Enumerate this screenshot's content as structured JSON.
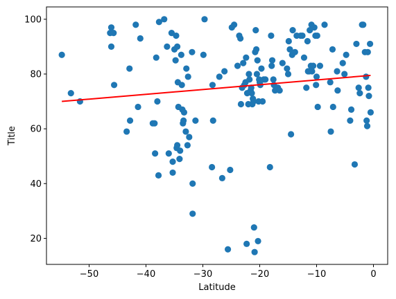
{
  "chart_data": {
    "type": "scatter",
    "title": "",
    "xlabel": "Latitude",
    "ylabel": "Title",
    "xlim": [
      -57.5,
      2.5
    ],
    "ylim": [
      10.5,
      104.5
    ],
    "xticks": [
      -50,
      -40,
      -30,
      -20,
      -10,
      0
    ],
    "yticks": [
      20,
      40,
      60,
      80,
      100
    ],
    "xtick_labels": [
      "−50",
      "−40",
      "−30",
      "−20",
      "−10",
      "0"
    ],
    "ytick_labels": [
      "20",
      "40",
      "60",
      "80",
      "100"
    ],
    "grid": false,
    "legend": "none",
    "colors": {
      "points": "#1f77b4",
      "regression": "#ff0000"
    },
    "series": [
      {
        "kind": "scatter",
        "points": [
          [
            -54.8,
            87
          ],
          [
            -53.2,
            73
          ],
          [
            -51.6,
            70
          ],
          [
            -46.3,
            95
          ],
          [
            -46.1,
            97
          ],
          [
            -46.1,
            90
          ],
          [
            -45.7,
            95
          ],
          [
            -45.6,
            76
          ],
          [
            -43.4,
            59
          ],
          [
            -42.9,
            82
          ],
          [
            -42.8,
            63
          ],
          [
            -41.8,
            98
          ],
          [
            -41.4,
            68
          ],
          [
            -41.0,
            93
          ],
          [
            -38.8,
            62
          ],
          [
            -38.5,
            62
          ],
          [
            -38.4,
            51
          ],
          [
            -38.2,
            86
          ],
          [
            -38.0,
            70
          ],
          [
            -37.8,
            43
          ],
          [
            -37.7,
            99
          ],
          [
            -36.8,
            100
          ],
          [
            -36.3,
            90
          ],
          [
            -36.0,
            51
          ],
          [
            -35.5,
            95
          ],
          [
            -35.3,
            48
          ],
          [
            -35.3,
            44
          ],
          [
            -35.0,
            89
          ],
          [
            -34.8,
            85
          ],
          [
            -34.7,
            94
          ],
          [
            -34.6,
            53
          ],
          [
            -34.5,
            54
          ],
          [
            -34.5,
            90
          ],
          [
            -34.4,
            77
          ],
          [
            -34.3,
            68
          ],
          [
            -34.1,
            49
          ],
          [
            -34.0,
            52
          ],
          [
            -33.8,
            87
          ],
          [
            -33.7,
            76
          ],
          [
            -33.6,
            67
          ],
          [
            -33.5,
            62
          ],
          [
            -33.4,
            63
          ],
          [
            -33.3,
            66
          ],
          [
            -33.0,
            59
          ],
          [
            -32.9,
            82
          ],
          [
            -32.7,
            54
          ],
          [
            -32.6,
            79
          ],
          [
            -32.4,
            57
          ],
          [
            -31.9,
            88
          ],
          [
            -31.8,
            40
          ],
          [
            -31.8,
            29
          ],
          [
            -31.3,
            63
          ],
          [
            -29.9,
            87
          ],
          [
            -29.7,
            100
          ],
          [
            -28.4,
            46
          ],
          [
            -28.3,
            76
          ],
          [
            -28.2,
            63
          ],
          [
            -27.1,
            79
          ],
          [
            -26.6,
            42
          ],
          [
            -26.2,
            81
          ],
          [
            -25.6,
            16
          ],
          [
            -25.2,
            45
          ],
          [
            -24.9,
            97
          ],
          [
            -24.5,
            98
          ],
          [
            -23.9,
            83
          ],
          [
            -23.6,
            94
          ],
          [
            -23.4,
            93
          ],
          [
            -23.3,
            69
          ],
          [
            -23.1,
            75
          ],
          [
            -22.9,
            84
          ],
          [
            -22.7,
            76
          ],
          [
            -22.5,
            77
          ],
          [
            -22.4,
            86
          ],
          [
            -22.3,
            18
          ],
          [
            -22.2,
            73
          ],
          [
            -22.0,
            69
          ],
          [
            -21.9,
            80
          ],
          [
            -21.8,
            78
          ],
          [
            -21.6,
            74
          ],
          [
            -21.5,
            75
          ],
          [
            -21.4,
            73
          ],
          [
            -21.3,
            69
          ],
          [
            -21.2,
            71
          ],
          [
            -21.1,
            70
          ],
          [
            -21.0,
            24
          ],
          [
            -20.9,
            15
          ],
          [
            -20.8,
            88
          ],
          [
            -20.7,
            96
          ],
          [
            -20.6,
            89
          ],
          [
            -20.5,
            80
          ],
          [
            -20.4,
            85
          ],
          [
            -20.3,
            19
          ],
          [
            -20.2,
            70
          ],
          [
            -20.1,
            78
          ],
          [
            -20.0,
            77
          ],
          [
            -19.9,
            76
          ],
          [
            -19.7,
            82
          ],
          [
            -19.5,
            70
          ],
          [
            -19.3,
            78
          ],
          [
            -19.0,
            78
          ],
          [
            -18.2,
            46
          ],
          [
            -18.0,
            94
          ],
          [
            -17.9,
            83
          ],
          [
            -17.8,
            85
          ],
          [
            -17.6,
            78
          ],
          [
            -17.5,
            76
          ],
          [
            -17.3,
            74
          ],
          [
            -16.8,
            75
          ],
          [
            -16.5,
            74
          ],
          [
            -16.0,
            84
          ],
          [
            -15.2,
            82
          ],
          [
            -15.0,
            80
          ],
          [
            -14.9,
            92
          ],
          [
            -14.7,
            89
          ],
          [
            -14.5,
            58
          ],
          [
            -14.3,
            87
          ],
          [
            -14.2,
            96
          ],
          [
            -13.8,
            88
          ],
          [
            -13.5,
            94
          ],
          [
            -12.8,
            94
          ],
          [
            -12.5,
            94
          ],
          [
            -12.2,
            86
          ],
          [
            -11.8,
            75
          ],
          [
            -11.6,
            92
          ],
          [
            -11.5,
            81
          ],
          [
            -11.3,
            81
          ],
          [
            -11.2,
            96
          ],
          [
            -11.0,
            83
          ],
          [
            -10.9,
            98
          ],
          [
            -10.8,
            81
          ],
          [
            -10.6,
            83
          ],
          [
            -10.4,
            97
          ],
          [
            -10.2,
            94
          ],
          [
            -10.1,
            76
          ],
          [
            -10.0,
            79
          ],
          [
            -9.9,
            94
          ],
          [
            -9.8,
            68
          ],
          [
            -9.4,
            83
          ],
          [
            -8.6,
            98
          ],
          [
            -7.6,
            77
          ],
          [
            -7.5,
            59
          ],
          [
            -7.2,
            89
          ],
          [
            -7.1,
            68
          ],
          [
            -6.4,
            81
          ],
          [
            -6.3,
            74
          ],
          [
            -5.4,
            84
          ],
          [
            -5.1,
            80
          ],
          [
            -4.8,
            87
          ],
          [
            -4.1,
            63
          ],
          [
            -3.9,
            67
          ],
          [
            -3.3,
            47
          ],
          [
            -3.0,
            91
          ],
          [
            -2.6,
            75
          ],
          [
            -2.4,
            73
          ],
          [
            -2.0,
            98
          ],
          [
            -1.8,
            98
          ],
          [
            -1.5,
            88
          ],
          [
            -1.3,
            79
          ],
          [
            -1.2,
            63
          ],
          [
            -1.1,
            61
          ],
          [
            -1.0,
            88
          ],
          [
            -0.9,
            75
          ],
          [
            -0.8,
            72
          ],
          [
            -0.6,
            91
          ],
          [
            -0.5,
            66
          ]
        ]
      },
      {
        "kind": "line",
        "x": [
          -54.8,
          -0.5
        ],
        "y": [
          70.0,
          79.5
        ]
      }
    ]
  }
}
